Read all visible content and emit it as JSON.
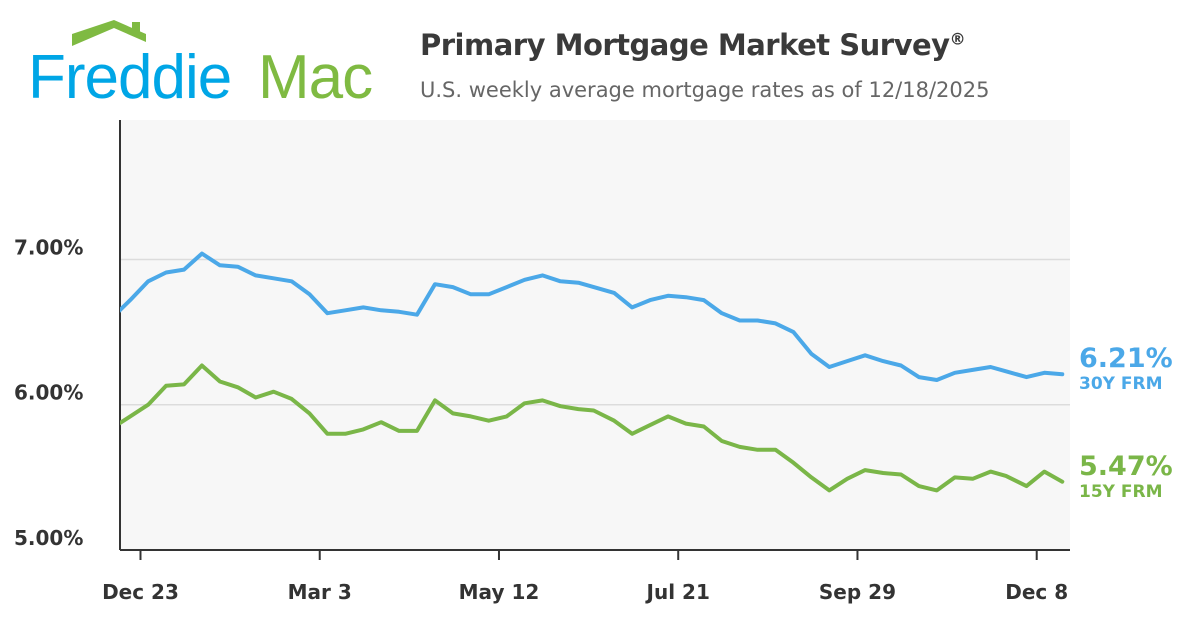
{
  "header": {
    "logo_text": "Freddie Mac",
    "title": "Primary Mortgage Market Survey",
    "title_mark": "®",
    "subtitle": "U.S. weekly average mortgage rates as of 12/18/2025"
  },
  "colors": {
    "brand_blue": "#00A6E6",
    "brand_green": "#7FBA42",
    "series_30y": "#4BA8E8",
    "series_15y": "#7AB648"
  },
  "chart_data": {
    "type": "line",
    "title": "Primary Mortgage Market Survey",
    "xlabel": "",
    "ylabel": "",
    "ylim": [
      5.0,
      7.96
    ],
    "xlim": [
      "2024-12-15",
      "2025-12-21"
    ],
    "yticks": [
      5.0,
      6.0,
      7.0
    ],
    "ytick_labels": [
      "5.00%",
      "6.00%",
      "7.00%"
    ],
    "xticks": [
      "2024-12-23",
      "2025-03-03",
      "2025-05-12",
      "2025-07-21",
      "2025-09-29",
      "2025-12-08"
    ],
    "xtick_labels": [
      "Dec 23",
      "Mar 3",
      "May 12",
      "Jul 21",
      "Sep 29",
      "Dec 8"
    ],
    "grid": "horizontal",
    "x": [
      "2024-12-12",
      "2024-12-19",
      "2024-12-26",
      "2025-01-02",
      "2025-01-09",
      "2025-01-16",
      "2025-01-23",
      "2025-01-30",
      "2025-02-06",
      "2025-02-13",
      "2025-02-20",
      "2025-02-27",
      "2025-03-06",
      "2025-03-13",
      "2025-03-20",
      "2025-03-27",
      "2025-04-03",
      "2025-04-10",
      "2025-04-17",
      "2025-04-24",
      "2025-05-01",
      "2025-05-08",
      "2025-05-15",
      "2025-05-22",
      "2025-05-29",
      "2025-06-05",
      "2025-06-12",
      "2025-06-18",
      "2025-06-26",
      "2025-07-03",
      "2025-07-10",
      "2025-07-17",
      "2025-07-24",
      "2025-07-31",
      "2025-08-07",
      "2025-08-14",
      "2025-08-21",
      "2025-08-28",
      "2025-09-04",
      "2025-09-11",
      "2025-09-18",
      "2025-09-25",
      "2025-10-02",
      "2025-10-09",
      "2025-10-16",
      "2025-10-23",
      "2025-10-30",
      "2025-11-06",
      "2025-11-13",
      "2025-11-20",
      "2025-11-26",
      "2025-12-04",
      "2025-12-11",
      "2025-12-18"
    ],
    "series": [
      {
        "name": "30Y FRM",
        "color": "#4BA8E8",
        "last_label": "6.21%",
        "values": [
          6.6,
          6.72,
          6.85,
          6.91,
          6.93,
          7.04,
          6.96,
          6.95,
          6.89,
          6.87,
          6.85,
          6.76,
          6.63,
          6.65,
          6.67,
          6.65,
          6.64,
          6.62,
          6.83,
          6.81,
          6.76,
          6.76,
          6.81,
          6.86,
          6.89,
          6.85,
          6.84,
          6.81,
          6.77,
          6.67,
          6.72,
          6.75,
          6.74,
          6.72,
          6.63,
          6.58,
          6.58,
          6.56,
          6.5,
          6.35,
          6.26,
          6.3,
          6.34,
          6.3,
          6.27,
          6.19,
          6.17,
          6.22,
          6.24,
          6.26,
          6.23,
          6.19,
          6.22,
          6.21
        ]
      },
      {
        "name": "15Y FRM",
        "color": "#7AB648",
        "last_label": "5.47%",
        "values": [
          5.84,
          5.92,
          6.0,
          6.13,
          6.14,
          6.27,
          6.16,
          6.12,
          6.05,
          6.09,
          6.04,
          5.94,
          5.8,
          5.8,
          5.83,
          5.88,
          5.82,
          5.82,
          6.03,
          5.94,
          5.92,
          5.89,
          5.92,
          6.01,
          6.03,
          5.99,
          5.97,
          5.96,
          5.89,
          5.8,
          5.86,
          5.92,
          5.87,
          5.85,
          5.75,
          5.71,
          5.69,
          5.69,
          5.6,
          5.5,
          5.41,
          5.49,
          5.55,
          5.53,
          5.52,
          5.44,
          5.41,
          5.5,
          5.49,
          5.54,
          5.51,
          5.44,
          5.54,
          5.47
        ]
      }
    ]
  }
}
